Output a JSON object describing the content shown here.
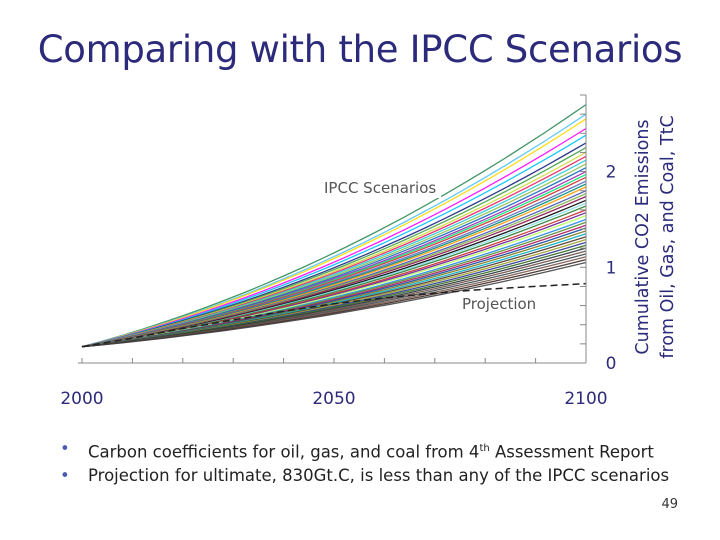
{
  "slide": {
    "title": "Comparing with the IPCC Scenarios",
    "bullets": [
      {
        "before": "Carbon coefficients for oil, gas, and coal from 4",
        "sup": "th",
        "after": " Assessment Report"
      },
      {
        "before": "Projection for ultimate, 830Gt.C, is less than any of the IPCC scenarios",
        "sup": "",
        "after": ""
      }
    ],
    "page_number": "49"
  },
  "chart_data": {
    "type": "line",
    "xlim": [
      2000,
      2100
    ],
    "ylim": [
      0,
      2.8
    ],
    "x_ticks": [
      "2000",
      "2050",
      "2100"
    ],
    "y_ticks": [
      "0",
      "1",
      "2"
    ],
    "ylabel_lines": [
      "Cumulative CO2 Emissions",
      "from Oil, Gas, and Coal, TtC"
    ],
    "annotations": [
      "IPCC Scenarios",
      "Projection"
    ],
    "start": {
      "year": 2000,
      "value": 0.17
    },
    "scenario_endpoints_2100": [
      2.7,
      2.6,
      2.55,
      2.45,
      2.38,
      2.3,
      2.25,
      2.2,
      2.16,
      2.12,
      2.08,
      2.04,
      2.0,
      1.97,
      1.94,
      1.9,
      1.87,
      1.84,
      1.8,
      1.77,
      1.74,
      1.7,
      1.67,
      1.64,
      1.6,
      1.57,
      1.54,
      1.5,
      1.47,
      1.44,
      1.41,
      1.38,
      1.35,
      1.32,
      1.29,
      1.26,
      1.23,
      1.2,
      1.17,
      1.14,
      1.11,
      1.08,
      1.05
    ],
    "scenario_colors": [
      "#2e8b57",
      "#4fc3f7",
      "#ffd700",
      "#ff00ff",
      "#00bfff",
      "#1a237e",
      "#43a047",
      "#cddc39",
      "#e91e63",
      "#26c6da",
      "#8bc34a",
      "#1565c0",
      "#9c27b0",
      "#00e676",
      "#d32f2f",
      "#5c6bc0",
      "#00897b",
      "#ff9800",
      "#3f51b5",
      "#7cb342",
      "#880e4f",
      "#000000",
      "#80deea",
      "#2e7d32",
      "#c62828",
      "#6a1b9a",
      "#b2ff59",
      "#1e88e5",
      "#558b2f",
      "#ad1457",
      "#0d47a1",
      "#827717",
      "#00acc1",
      "#4e342e",
      "#9e9d24",
      "#283593",
      "#33691e",
      "#263238",
      "#6d4c41",
      "#37474f",
      "#795548",
      "#3e2723",
      "#424242"
    ],
    "projection": {
      "x": [
        2000,
        2010,
        2020,
        2030,
        2040,
        2050,
        2060,
        2070,
        2080,
        2090,
        2100
      ],
      "y": [
        0.17,
        0.26,
        0.36,
        0.45,
        0.54,
        0.62,
        0.68,
        0.73,
        0.77,
        0.8,
        0.83
      ]
    }
  }
}
